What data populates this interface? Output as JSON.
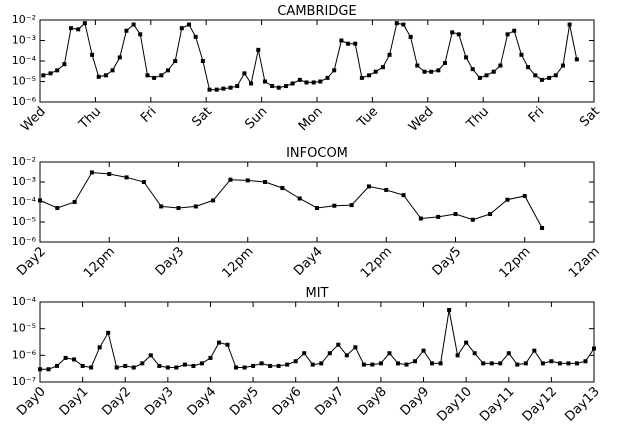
{
  "chart_data": [
    {
      "type": "line",
      "title": "CAMBRIDGE",
      "color": "#000000",
      "yscale": "log",
      "xlim": [
        0,
        10
      ],
      "ylim": [
        1e-06,
        0.01
      ],
      "xticks": [
        {
          "value": 0,
          "label": "Wed"
        },
        {
          "value": 1,
          "label": "Thu"
        },
        {
          "value": 2,
          "label": "Fri"
        },
        {
          "value": 3,
          "label": "Sat"
        },
        {
          "value": 4,
          "label": "Sun"
        },
        {
          "value": 5,
          "label": "Mon"
        },
        {
          "value": 6,
          "label": "Tue"
        },
        {
          "value": 7,
          "label": "Wed"
        },
        {
          "value": 8,
          "label": "Thu"
        },
        {
          "value": 9,
          "label": "Fri"
        },
        {
          "value": 10,
          "label": "Sat"
        }
      ],
      "yticks": [
        {
          "value": 1e-06,
          "label": "10⁻⁶"
        },
        {
          "value": 1e-05,
          "label": "10⁻⁵"
        },
        {
          "value": 0.0001,
          "label": "10⁻⁴"
        },
        {
          "value": 0.001,
          "label": "10⁻³"
        },
        {
          "value": 0.01,
          "label": "10⁻²"
        }
      ],
      "x": [
        0.06,
        0.19,
        0.31,
        0.44,
        0.56,
        0.69,
        0.81,
        0.94,
        1.06,
        1.19,
        1.31,
        1.44,
        1.56,
        1.69,
        1.81,
        1.94,
        2.06,
        2.19,
        2.31,
        2.44,
        2.56,
        2.69,
        2.81,
        2.94,
        3.06,
        3.19,
        3.31,
        3.44,
        3.56,
        3.69,
        3.81,
        3.94,
        4.06,
        4.19,
        4.31,
        4.44,
        4.56,
        4.69,
        4.81,
        4.94,
        5.06,
        5.19,
        5.31,
        5.44,
        5.56,
        5.69,
        5.81,
        5.94,
        6.06,
        6.19,
        6.31,
        6.44,
        6.56,
        6.69,
        6.81,
        6.94,
        7.06,
        7.19,
        7.31,
        7.44,
        7.56,
        7.69,
        7.81,
        7.94,
        8.06,
        8.19,
        8.31,
        8.44,
        8.56,
        8.69,
        8.81,
        8.94,
        9.06,
        9.19,
        9.31,
        9.44,
        9.56,
        9.69
      ],
      "values": [
        2e-05,
        2.5e-05,
        3.5e-05,
        7e-05,
        0.004,
        0.0035,
        0.007,
        0.0002,
        1.7e-05,
        2e-05,
        3.5e-05,
        0.00015,
        0.003,
        0.006,
        0.002,
        2e-05,
        1.5e-05,
        2e-05,
        3.5e-05,
        0.0001,
        0.004,
        0.006,
        0.0015,
        0.0001,
        4e-06,
        4e-06,
        4.5e-06,
        5e-06,
        6e-06,
        2.5e-05,
        8e-06,
        0.00035,
        1e-05,
        6e-06,
        5e-06,
        6e-06,
        8e-06,
        1.2e-05,
        9e-06,
        9e-06,
        1e-05,
        1.5e-05,
        3.5e-05,
        0.001,
        0.0007,
        0.0007,
        1.5e-05,
        2e-05,
        3e-05,
        5e-05,
        0.0002,
        0.007,
        0.006,
        0.0015,
        6e-05,
        3e-05,
        3e-05,
        3.5e-05,
        8e-05,
        0.0025,
        0.002,
        0.00015,
        4e-05,
        1.5e-05,
        2e-05,
        3e-05,
        6e-05,
        0.002,
        0.003,
        0.0002,
        5e-05,
        2e-05,
        1.2e-05,
        1.5e-05,
        2e-05,
        6e-05,
        0.006,
        0.00012
      ]
    },
    {
      "type": "line",
      "title": "INFOCOM",
      "color": "#000000",
      "yscale": "log",
      "xlim": [
        0,
        96
      ],
      "ylim": [
        1e-06,
        0.01
      ],
      "xticks": [
        {
          "value": 0,
          "label": "Day2"
        },
        {
          "value": 12,
          "label": "12pm"
        },
        {
          "value": 24,
          "label": "Day3"
        },
        {
          "value": 36,
          "label": "12pm"
        },
        {
          "value": 48,
          "label": "Day4"
        },
        {
          "value": 60,
          "label": "12pm"
        },
        {
          "value": 72,
          "label": "Day5"
        },
        {
          "value": 84,
          "label": "12pm"
        },
        {
          "value": 96,
          "label": "12am"
        }
      ],
      "yticks": [
        {
          "value": 1e-06,
          "label": "10⁻⁶"
        },
        {
          "value": 1e-05,
          "label": "10⁻⁵"
        },
        {
          "value": 0.0001,
          "label": "10⁻⁴"
        },
        {
          "value": 0.001,
          "label": "10⁻³"
        },
        {
          "value": 0.01,
          "label": "10⁻²"
        }
      ],
      "x": [
        0,
        3,
        6,
        9,
        12,
        15,
        18,
        21,
        24,
        27,
        30,
        33,
        36,
        39,
        42,
        45,
        48,
        51,
        54,
        57,
        60,
        63,
        66,
        69,
        72,
        75,
        78,
        81,
        84,
        87
      ],
      "values": [
        0.00012,
        5e-05,
        0.0001,
        0.003,
        0.0025,
        0.0017,
        0.001,
        6e-05,
        5e-05,
        6e-05,
        0.00012,
        0.0013,
        0.0012,
        0.001,
        0.0005,
        0.00015,
        5e-05,
        6.5e-05,
        7e-05,
        0.0006,
        0.0004,
        0.00022,
        1.5e-05,
        1.8e-05,
        2.5e-05,
        1.3e-05,
        2.5e-05,
        0.00013,
        0.0002,
        5e-06
      ]
    },
    {
      "type": "line",
      "title": "MIT",
      "color": "#000000",
      "yscale": "log",
      "xlim": [
        0,
        13
      ],
      "ylim": [
        1e-07,
        0.0001
      ],
      "xticks": [
        {
          "value": 0,
          "label": "Day0"
        },
        {
          "value": 1,
          "label": "Day1"
        },
        {
          "value": 2,
          "label": "Day2"
        },
        {
          "value": 3,
          "label": "Day3"
        },
        {
          "value": 4,
          "label": "Day4"
        },
        {
          "value": 5,
          "label": "Day5"
        },
        {
          "value": 6,
          "label": "Day6"
        },
        {
          "value": 7,
          "label": "Day7"
        },
        {
          "value": 8,
          "label": "Day8"
        },
        {
          "value": 9,
          "label": "Day9"
        },
        {
          "value": 10,
          "label": "Day10"
        },
        {
          "value": 11,
          "label": "Day11"
        },
        {
          "value": 12,
          "label": "Day12"
        },
        {
          "value": 13,
          "label": "Day13"
        }
      ],
      "yticks": [
        {
          "value": 1e-07,
          "label": "10⁻⁷"
        },
        {
          "value": 1e-06,
          "label": "10⁻⁶"
        },
        {
          "value": 1e-05,
          "label": "10⁻⁵"
        },
        {
          "value": 0.0001,
          "label": "10⁻⁴"
        }
      ],
      "x": [
        0,
        0.2,
        0.4,
        0.6,
        0.8,
        1,
        1.2,
        1.4,
        1.6,
        1.8,
        2,
        2.2,
        2.4,
        2.6,
        2.8,
        3,
        3.2,
        3.4,
        3.6,
        3.8,
        4,
        4.2,
        4.4,
        4.6,
        4.8,
        5,
        5.2,
        5.4,
        5.6,
        5.8,
        6,
        6.2,
        6.4,
        6.6,
        6.8,
        7,
        7.2,
        7.4,
        7.6,
        7.8,
        8,
        8.2,
        8.4,
        8.6,
        8.8,
        9,
        9.2,
        9.4,
        9.6,
        9.8,
        10,
        10.2,
        10.4,
        10.6,
        10.8,
        11,
        11.2,
        11.4,
        11.6,
        11.8,
        12,
        12.2,
        12.4,
        12.6,
        12.8,
        13
      ],
      "values": [
        3e-07,
        3e-07,
        4e-07,
        8e-07,
        7e-07,
        4e-07,
        3.5e-07,
        2e-06,
        7e-06,
        3.5e-07,
        4e-07,
        3.5e-07,
        5e-07,
        1e-06,
        4e-07,
        3.5e-07,
        3.5e-07,
        4.5e-07,
        4e-07,
        5e-07,
        8e-07,
        3e-06,
        2.5e-06,
        3.5e-07,
        3.5e-07,
        4e-07,
        5e-07,
        4e-07,
        4e-07,
        4.5e-07,
        6e-07,
        1.2e-06,
        4.5e-07,
        5e-07,
        1.2e-06,
        2.5e-06,
        1e-06,
        2e-06,
        4.5e-07,
        4.5e-07,
        5e-07,
        1.2e-06,
        5e-07,
        4.5e-07,
        6e-07,
        1.5e-06,
        5e-07,
        5e-07,
        5e-05,
        1e-06,
        3e-06,
        1.2e-06,
        5e-07,
        5e-07,
        5e-07,
        1.2e-06,
        4.5e-07,
        5e-07,
        1.5e-06,
        5e-07,
        6e-07,
        5e-07,
        5e-07,
        5e-07,
        6e-07,
        1.8e-06
      ]
    }
  ]
}
